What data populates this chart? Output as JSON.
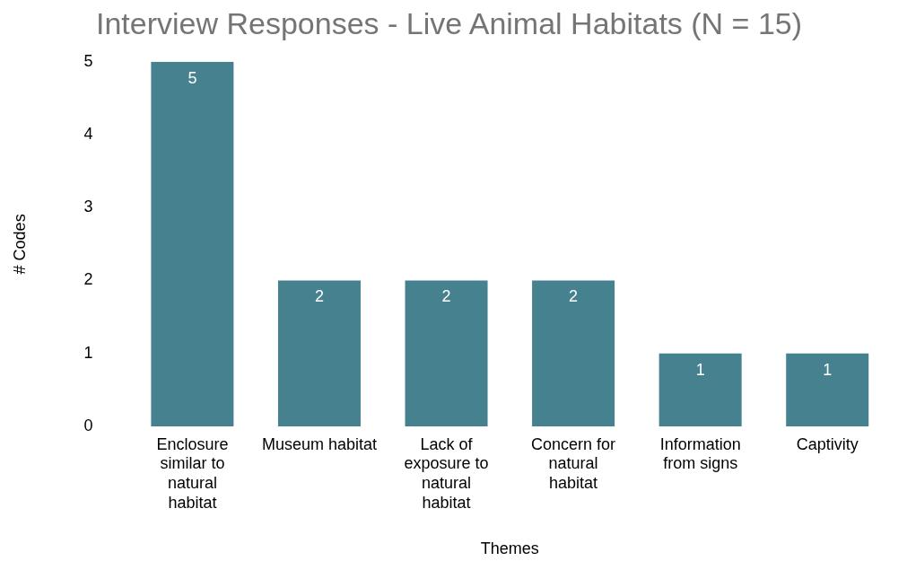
{
  "chart_data": {
    "type": "bar",
    "title": "Interview Responses - Live Animal Habitats (N = 15)",
    "xlabel": "Themes",
    "ylabel": "# Codes",
    "categories": [
      "Enclosure similar to natural habitat",
      "Museum habitat",
      "Lack of exposure to natural habitat",
      "Concern for natural habitat",
      "Information from signs",
      "Captivity"
    ],
    "values": [
      5,
      2,
      2,
      2,
      1,
      1
    ],
    "color": "#45818e",
    "ylim": [
      0,
      5
    ],
    "yticks": [
      0,
      1,
      2,
      3,
      4,
      5
    ],
    "grid": false,
    "legend": false,
    "data_labels": true
  }
}
